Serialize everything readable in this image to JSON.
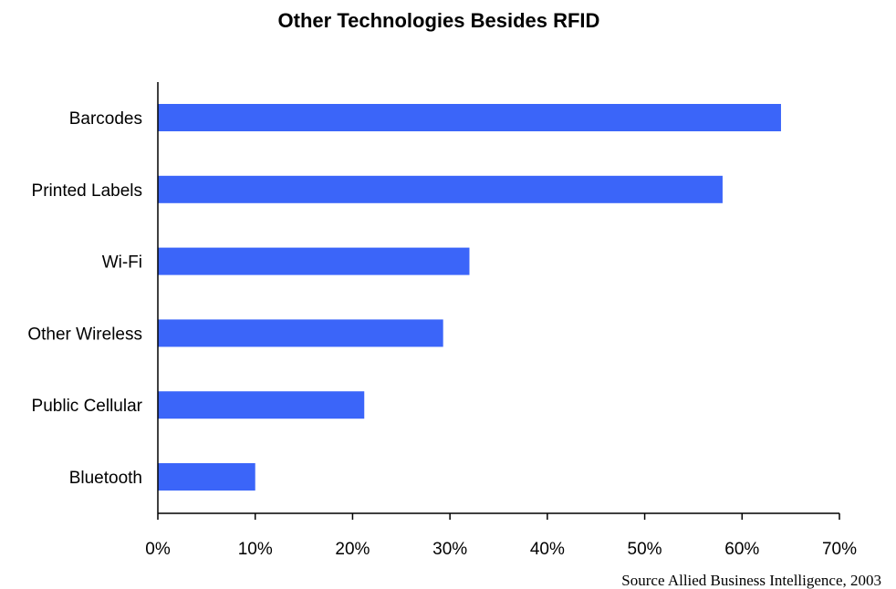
{
  "chart_data": {
    "type": "bar",
    "orientation": "horizontal",
    "title": "Other Technologies Besides RFID",
    "xlabel": "",
    "ylabel": "",
    "categories": [
      "Barcodes",
      "Printed Labels",
      "Wi-Fi",
      "Other Wireless",
      "Public Cellular",
      "Bluetooth"
    ],
    "values": [
      64,
      58,
      32,
      29.3,
      21.2,
      10
    ],
    "value_unit": "%",
    "xlim": [
      0,
      70
    ],
    "x_ticks": [
      0,
      10,
      20,
      30,
      40,
      50,
      60,
      70
    ],
    "x_tick_labels": [
      "0%",
      "10%",
      "20%",
      "30%",
      "40%",
      "50%",
      "60%",
      "70%"
    ],
    "bar_color": "#3b65f9",
    "grid": false,
    "legend": "none",
    "source_note": "Source Allied Business Intelligence, 2003"
  }
}
